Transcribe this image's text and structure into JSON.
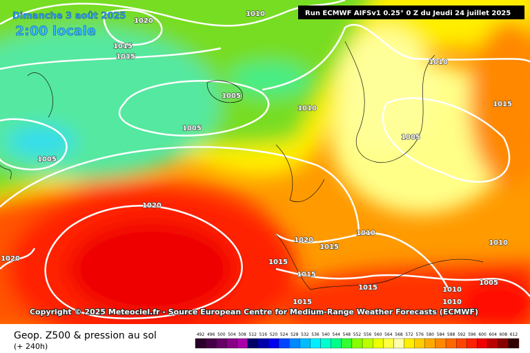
{
  "header": {
    "date": "Dimanche 3 août 2025",
    "time": "2:00 locale",
    "run": "Run ECMWF AIFSv1 0.25° 0 Z du Jeudi 24 juillet 2025"
  },
  "isobars": [
    "1010",
    "1020",
    "1015",
    "1015",
    "1010",
    "1005",
    "1010",
    "1015",
    "1005",
    "1005",
    "1005",
    "1020",
    "1020",
    "1015",
    "1010",
    "1020",
    "1015",
    "1010",
    "1015",
    "1015",
    "1010",
    "1005",
    "1010",
    "1015"
  ],
  "copyright": "Copyright © 2025 Meteociel.fr - Source European Centre for Medium-Range Weather Forecasts (ECMWF)",
  "footer": {
    "title": "Geop. Z500 & pression au sol",
    "lead": "(+ 240h)"
  },
  "legend": {
    "labels": [
      492,
      496,
      500,
      504,
      508,
      512,
      516,
      520,
      524,
      528,
      532,
      536,
      540,
      544,
      548,
      552,
      556,
      560,
      564,
      568,
      572,
      576,
      580,
      584,
      588,
      592,
      596,
      600,
      604,
      608,
      612
    ]
  }
}
